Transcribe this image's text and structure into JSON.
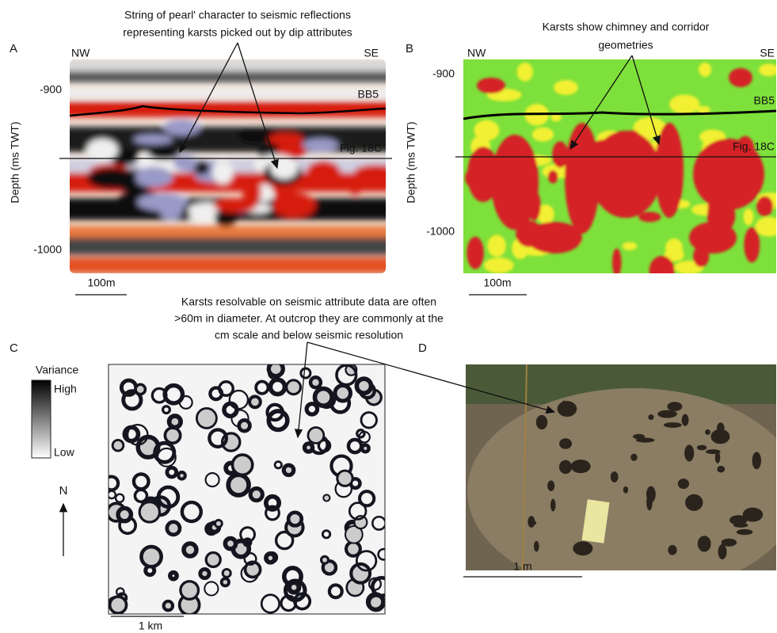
{
  "shared_annotation": [
    "Karsts resolvable on seismic attribute data are often",
    ">60m in diameter. At outcrop they are commonly at the",
    "cm scale and below seismic resolution"
  ],
  "panel_a": {
    "label": "A",
    "annotation": [
      "String of pearl' character to seismic reflections",
      "representing karsts picked out by dip attributes"
    ],
    "left_label": "NW",
    "right_label": "SE",
    "y_axis_label": "Depth (ms TWT)",
    "depth_labels": [
      "-900",
      "-1000"
    ],
    "horizon": "BB5",
    "section_label": "Fig. 18C",
    "scale_bar": "100m"
  },
  "panel_b": {
    "label": "B",
    "annotation": [
      "Karsts show chimney and corridor",
      "geometries"
    ],
    "left_label": "NW",
    "right_label": "SE",
    "y_axis_label": "Depth (ms TWT)",
    "depth_labels": [
      "-900",
      "-1000"
    ],
    "horizon": "BB5",
    "section_label": "Fig. 18C",
    "scale_bar": "100m"
  },
  "panel_c": {
    "label": "C",
    "colorbar_title": "Variance",
    "colorbar_high": "High",
    "colorbar_low": "Low",
    "north": "N",
    "scale_bar": "1 km"
  },
  "panel_d": {
    "label": "D",
    "scale_bar": "1 m"
  }
}
